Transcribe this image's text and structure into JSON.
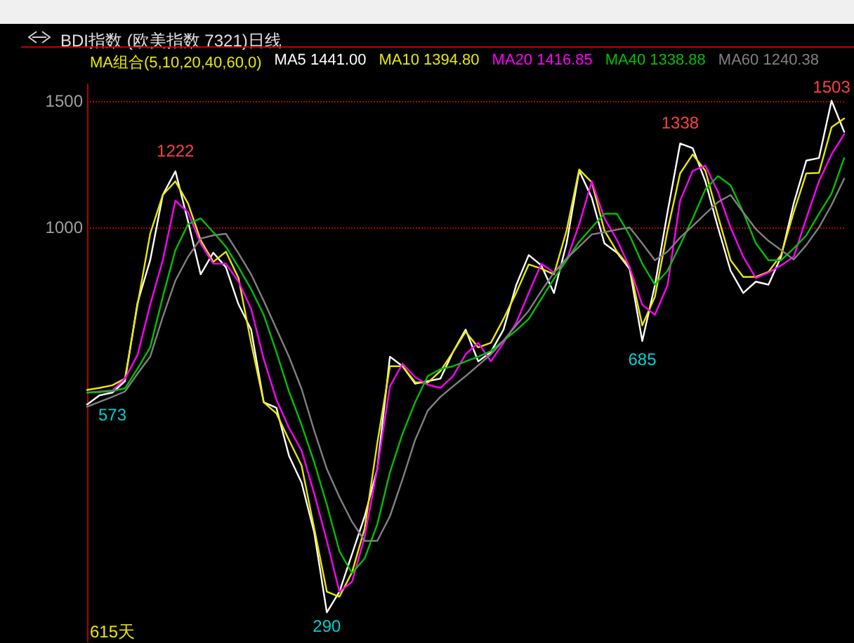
{
  "chart_data": {
    "type": "line",
    "title": "BDI指数 (欧美指数 7321)日线",
    "legend_title": "MA组合(5,10,20,40,60,0)",
    "log": "y",
    "ylim": [
      264,
      1585
    ],
    "yticks": [
      1000,
      1500
    ],
    "tick_labels": "y",
    "grid": "y",
    "marker": "none",
    "line_style": "solid",
    "categories": [
      null,
      null,
      null,
      null,
      null,
      null,
      null,
      null,
      null,
      null,
      null,
      null,
      null,
      null,
      null,
      null,
      null,
      null,
      null,
      null,
      null,
      null,
      null,
      null,
      null,
      null,
      null,
      null,
      null,
      null,
      null,
      null,
      null,
      null,
      null,
      null,
      null,
      null,
      null,
      null,
      null,
      null,
      null,
      null,
      null,
      null,
      null,
      null,
      null,
      null,
      null,
      null,
      null,
      null,
      null,
      null,
      null,
      null,
      null,
      null,
      null
    ],
    "annotations": [
      {
        "text": "573",
        "y": 573
      },
      {
        "text": "1222",
        "y": 1222
      },
      {
        "text": "290",
        "y": 290
      },
      {
        "text": "685",
        "y": 685
      },
      {
        "text": "1338",
        "y": 1338
      },
      {
        "text": "1503",
        "y": 1503
      },
      "615天"
    ],
    "series": [
      {
        "name": "MA5 1441.00",
        "color": "#ffffff",
        "values": [
          566,
          583,
          588,
          610,
          785,
          900,
          1110,
          1198,
          1020,
          860,
          922,
          880,
          781,
          720,
          570,
          560,
          480,
          440,
          375,
          290,
          310,
          350,
          395,
          460,
          660,
          640,
          605,
          610,
          615,
          670,
          720,
          650,
          670,
          720,
          830,
          915,
          885,
          810,
          950,
          1200,
          1100,
          950,
          922,
          875,
          694,
          830,
          1050,
          1310,
          1290,
          1160,
          1000,
          870,
          810,
          840,
          832,
          910,
          1080,
          1240,
          1250,
          1503,
          1360
        ]
      },
      {
        "name": "MA10 1394.80",
        "color": "#e8e800",
        "values": [
          593,
          597,
          602,
          615,
          780,
          980,
          1110,
          1160,
          1080,
          960,
          895,
          925,
          850,
          690,
          570,
          550,
          505,
          465,
          380,
          310,
          305,
          330,
          380,
          500,
          640,
          640,
          608,
          607,
          630,
          670,
          715,
          680,
          690,
          745,
          810,
          888,
          876,
          860,
          990,
          1205,
          1156,
          990,
          925,
          880,
          730,
          800,
          990,
          1190,
          1265,
          1200,
          1037,
          900,
          853,
          853,
          867,
          915,
          1050,
          1190,
          1192,
          1380,
          1420
        ]
      },
      {
        "name": "MA20 1416.85",
        "color": "#ff00ff",
        "values": [
          588,
          590,
          592,
          615,
          664,
          780,
          900,
          1090,
          1050,
          950,
          890,
          890,
          840,
          770,
          655,
          575,
          525,
          488,
          425,
          365,
          310,
          320,
          370,
          460,
          600,
          645,
          618,
          603,
          597,
          620,
          665,
          690,
          650,
          690,
          735,
          810,
          890,
          865,
          900,
          1010,
          1160,
          1030,
          960,
          880,
          780,
          755,
          830,
          1090,
          1200,
          1220,
          1121,
          1000,
          910,
          850,
          865,
          885,
          910,
          1030,
          1160,
          1265,
          1350
        ]
      },
      {
        "name": "MA40 1338.88",
        "color": "#00c000",
        "values": [
          588,
          589,
          591,
          596,
          635,
          680,
          800,
          930,
          1010,
          1030,
          985,
          940,
          880,
          820,
          755,
          670,
          590,
          530,
          470,
          410,
          353,
          329,
          345,
          385,
          455,
          515,
          570,
          620,
          634,
          640,
          650,
          660,
          672,
          695,
          718,
          745,
          795,
          848,
          900,
          955,
          1000,
          1045,
          1045,
          975,
          890,
          832,
          870,
          945,
          1030,
          1130,
          1180,
          1145,
          1050,
          950,
          900,
          900,
          935,
          975,
          1045,
          1115,
          1250
        ]
      },
      {
        "name": "MA60 1240.38",
        "color": "#808080",
        "values": [
          562,
          571,
          580,
          590,
          625,
          660,
          750,
          843,
          910,
          965,
          975,
          980,
          920,
          860,
          790,
          722,
          660,
          595,
          520,
          460,
          420,
          388,
          365,
          365,
          395,
          445,
          505,
          555,
          580,
          600,
          620,
          642,
          665,
          695,
          730,
          765,
          815,
          865,
          905,
          940,
          978,
          985,
          993,
          1000,
          950,
          900,
          925,
          968,
          1005,
          1045,
          1085,
          1110,
          1050,
          995,
          958,
          930,
          902,
          945,
          1000,
          1075,
          1170
        ]
      }
    ]
  }
}
